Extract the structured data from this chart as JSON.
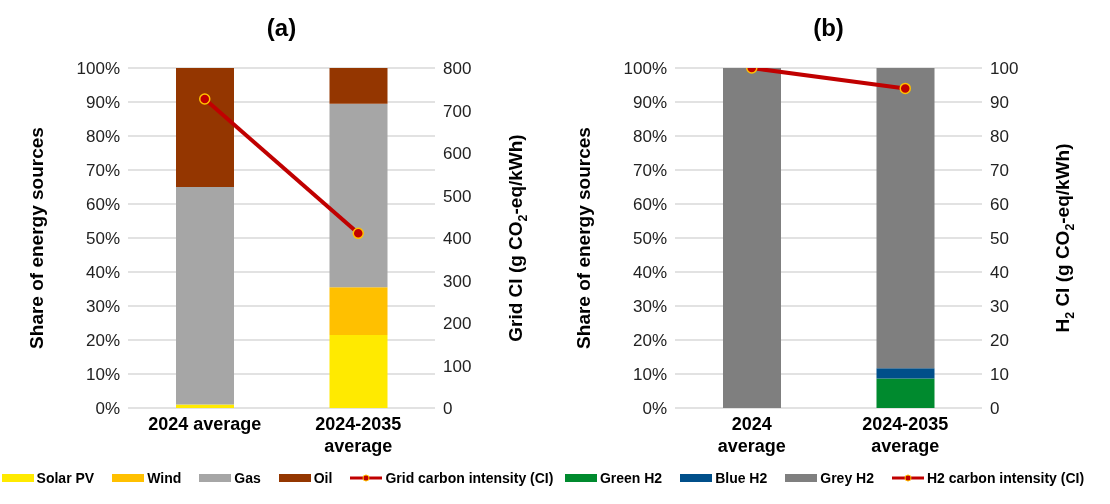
{
  "chart_data": [
    {
      "type": "bar",
      "title": "(a)",
      "ylabel": "Share of energy sources",
      "y2label": "Grid CI (g CO$_{2}$-eq/kWh)",
      "categories": [
        "2024 average",
        "2024-2035 average"
      ],
      "stacked": true,
      "series": [
        {
          "name": "Solar PV",
          "color": "#ffea00",
          "values": [
            1,
            21.5
          ]
        },
        {
          "name": "Wind",
          "color": "#ffc000",
          "values": [
            0,
            14
          ]
        },
        {
          "name": "Gas",
          "color": "#a6a6a6",
          "values": [
            64,
            54
          ]
        },
        {
          "name": "Oil",
          "color": "#943600",
          "values": [
            35,
            10.5
          ]
        },
        {
          "name": "Grid carbon intensity (CI)",
          "type": "line",
          "axis": "y2",
          "color": "#c00000",
          "values": [
            727,
            411
          ]
        }
      ],
      "ylim": [
        0,
        100
      ],
      "yticks": [
        {
          "value": 0,
          "label": "0%"
        },
        {
          "value": 10,
          "label": "10%"
        },
        {
          "value": 20,
          "label": "20%"
        },
        {
          "value": 30,
          "label": "30%"
        },
        {
          "value": 40,
          "label": "40%"
        },
        {
          "value": 50,
          "label": "50%"
        },
        {
          "value": 60,
          "label": "60%"
        },
        {
          "value": 70,
          "label": "70%"
        },
        {
          "value": 80,
          "label": "80%"
        },
        {
          "value": 90,
          "label": "90%"
        },
        {
          "value": 100,
          "label": "100%"
        }
      ],
      "y2lim": [
        0,
        800
      ],
      "y2ticks": [
        0,
        100,
        200,
        300,
        400,
        500,
        600,
        700,
        800
      ],
      "grid": "y",
      "legend": "bottom",
      "marker": "circle",
      "line_style": "solid"
    },
    {
      "type": "bar",
      "title": "(b)",
      "ylabel": "Share of energy sources",
      "y2label": "H$_{2}$ CI (g CO$_{2}$-eq/kWh)",
      "categories": [
        "2024 average",
        "2024-2035 average"
      ],
      "stacked": true,
      "series": [
        {
          "name": "Green H2",
          "color": "#008a2e",
          "values": [
            0,
            8.7
          ]
        },
        {
          "name": "Blue H2",
          "color": "#004f8a",
          "values": [
            0,
            3
          ]
        },
        {
          "name": "Grey H2",
          "color": "#7f7f7f",
          "values": [
            100,
            88.3
          ]
        },
        {
          "name": "H2 carbon intensity (CI)",
          "type": "line",
          "axis": "y2",
          "color": "#c00000",
          "values": [
            100,
            94
          ]
        }
      ],
      "ylim": [
        0,
        100
      ],
      "yticks": [
        {
          "value": 0,
          "label": "0%"
        },
        {
          "value": 10,
          "label": "10%"
        },
        {
          "value": 20,
          "label": "20%"
        },
        {
          "value": 30,
          "label": "30%"
        },
        {
          "value": 40,
          "label": "40%"
        },
        {
          "value": 50,
          "label": "50%"
        },
        {
          "value": 60,
          "label": "60%"
        },
        {
          "value": 70,
          "label": "70%"
        },
        {
          "value": 80,
          "label": "80%"
        },
        {
          "value": 90,
          "label": "90%"
        },
        {
          "value": 100,
          "label": "100%"
        }
      ],
      "y2lim": [
        0,
        100
      ],
      "y2ticks": [
        0,
        10,
        20,
        30,
        40,
        50,
        60,
        70,
        80,
        90,
        100
      ],
      "grid": "y",
      "legend": "bottom",
      "marker": "circle",
      "line_style": "solid"
    }
  ]
}
